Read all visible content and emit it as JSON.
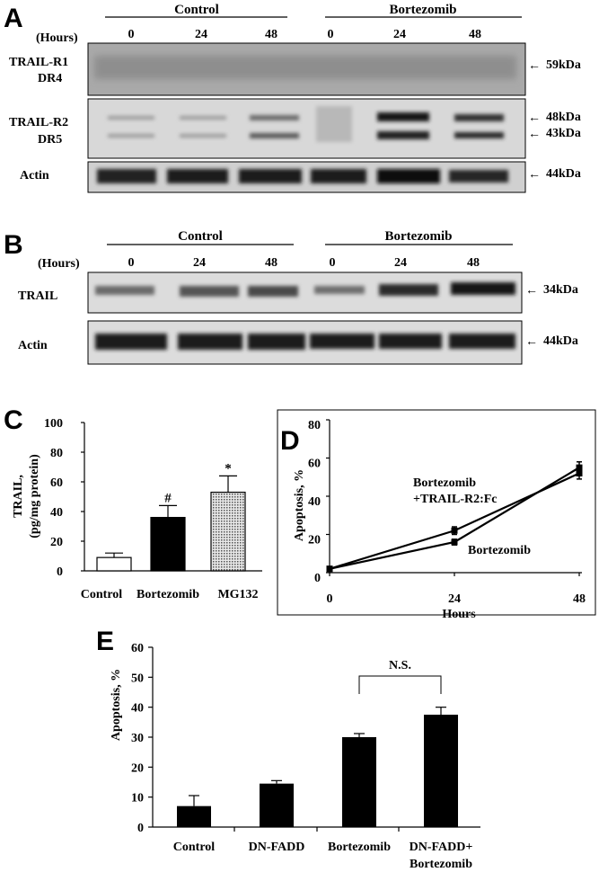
{
  "panel_a": {
    "letter": "A",
    "group_labels": [
      "Control",
      "Bortezomib"
    ],
    "hours_label": "(Hours)",
    "lanes": [
      "0",
      "24",
      "48",
      "0",
      "24",
      "48"
    ],
    "blots": [
      {
        "label_lines": [
          "TRAIL-R1",
          "DR4"
        ],
        "markers": [
          "59kDa"
        ]
      },
      {
        "label_lines": [
          "TRAIL-R2",
          "DR5"
        ],
        "markers": [
          "48kDa",
          "43kDa"
        ]
      },
      {
        "label_lines": [
          "Actin"
        ],
        "markers": [
          "44kDa"
        ]
      }
    ]
  },
  "panel_b": {
    "letter": "B",
    "group_labels": [
      "Control",
      "Bortezomib"
    ],
    "hours_label": "(Hours)",
    "lanes": [
      "0",
      "24",
      "48",
      "0",
      "24",
      "48"
    ],
    "blots": [
      {
        "label_lines": [
          "TRAIL"
        ],
        "markers": [
          "34kDa"
        ]
      },
      {
        "label_lines": [
          "Actin"
        ],
        "markers": [
          "44kDa"
        ]
      }
    ]
  },
  "chart_data": [
    {
      "panel": "C",
      "type": "bar",
      "categories": [
        "Control",
        "Bortezomib",
        "MG132"
      ],
      "values": [
        9,
        36,
        53
      ],
      "errors": [
        3,
        8,
        11
      ],
      "markers": [
        "",
        "#",
        "*"
      ],
      "fills": [
        "#ffffff",
        "#000000",
        "#bdbdbd"
      ],
      "ylabel_lines": [
        "TRAIL,",
        "(pg/mg protein)"
      ],
      "ylim": [
        0,
        100
      ],
      "yticks": [
        0,
        20,
        40,
        60,
        80,
        100
      ]
    },
    {
      "panel": "D",
      "type": "line",
      "x": [
        0,
        24,
        48
      ],
      "xticks": [
        0,
        24,
        48
      ],
      "xlim": [
        0,
        48
      ],
      "ylim": [
        0,
        80
      ],
      "yticks": [
        0,
        20,
        40,
        60,
        80
      ],
      "ylabel": "Apoptosis, %",
      "xlabel": "Hours",
      "series": [
        {
          "name": "Bortezomib +TRAIL-R2:Fc",
          "label_lines": [
            "Bortezomib",
            "+TRAIL-R2:Fc"
          ],
          "values": [
            2,
            22,
            52
          ],
          "errors": [
            0.8,
            2,
            3
          ]
        },
        {
          "name": "Bortezomib",
          "label_lines": [
            "Bortezomib"
          ],
          "values": [
            2,
            16,
            55
          ],
          "errors": [
            0.8,
            1.5,
            3
          ]
        }
      ]
    },
    {
      "panel": "E",
      "type": "bar",
      "categories": [
        "Control",
        "DN-FADD",
        "Bortezomib",
        "DN-FADD+ Bortezomib"
      ],
      "category_lines": [
        [
          "Control"
        ],
        [
          "DN-FADD"
        ],
        [
          "Bortezomib"
        ],
        [
          "DN-FADD+",
          "Bortezomib"
        ]
      ],
      "values": [
        7,
        14.5,
        30,
        37.5
      ],
      "errors": [
        3.5,
        1,
        1.2,
        2.5
      ],
      "ylabel": "Apoptosis, %",
      "ylim": [
        0,
        60
      ],
      "yticks": [
        0,
        10,
        20,
        30,
        40,
        50,
        60
      ],
      "annotation": "N.S."
    }
  ]
}
